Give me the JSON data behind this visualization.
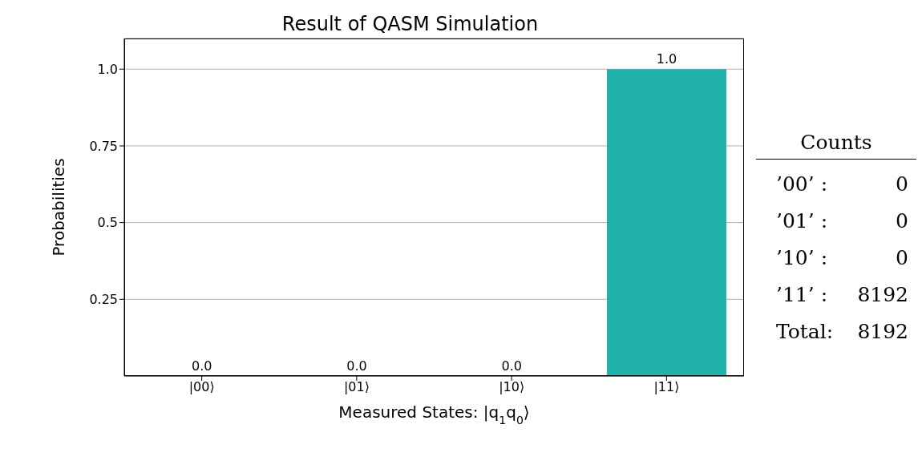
{
  "chart_data": {
    "type": "bar",
    "title": "Result of QASM Simulation",
    "xlabel": "Measured States: |q$_{1}$q$_{0}$⟩",
    "ylabel": "Probabilities",
    "categories": [
      "|00⟩",
      "|01⟩",
      "|10⟩",
      "|11⟩"
    ],
    "values": [
      0.0,
      0.0,
      0.0,
      1.0
    ],
    "color": "#20b2aa",
    "value_labels": [
      "0.0",
      "0.0",
      "0.0",
      "1.0"
    ],
    "ylim": [
      0,
      1.1
    ],
    "yticks": [
      {
        "value": 0.25,
        "label": "0.25"
      },
      {
        "value": 0.5,
        "label": "0.5"
      },
      {
        "value": 0.75,
        "label": "0.75"
      },
      {
        "value": 1.0,
        "label": "1.0"
      }
    ],
    "grid": "y",
    "annotations": [
      "Counts",
      "’00’ :",
      "0",
      "’01’ :",
      "0",
      "’10’ :",
      "0",
      "’11’ :",
      "8192",
      "Total:",
      "8192"
    ]
  }
}
